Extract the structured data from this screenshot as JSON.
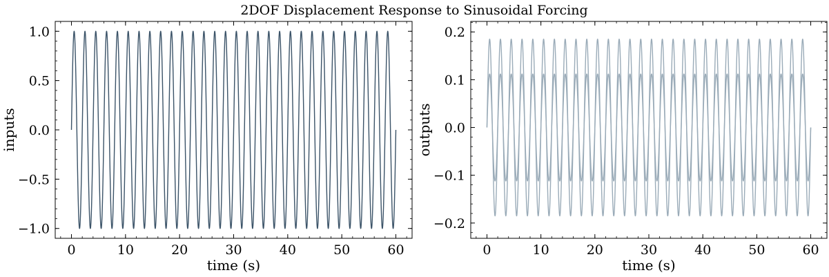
{
  "figure": {
    "title": "2DOF Displacement Response to Sinusoidal Forcing"
  },
  "chart_data": [
    {
      "type": "line",
      "xlabel": "time (s)",
      "ylabel": "inputs",
      "xlim": [
        -3,
        63
      ],
      "ylim": [
        -1.1,
        1.1
      ],
      "xticks": [
        0,
        10,
        20,
        30,
        40,
        50,
        60
      ],
      "xtick_labels": [
        "0",
        "10",
        "20",
        "30",
        "40",
        "50",
        "60"
      ],
      "yticks": [
        -1.0,
        -0.5,
        0.0,
        0.5,
        1.0
      ],
      "ytick_labels": [
        "−1.0",
        "−0.5",
        "0.0",
        "0.5",
        "1.0"
      ],
      "grid": false,
      "series": [
        {
          "color": "#3b5368",
          "x_range": [
            0,
            60
          ],
          "period": 2.0,
          "amplitude": 1.0
        }
      ]
    },
    {
      "type": "line",
      "xlabel": "time (s)",
      "ylabel": "outputs",
      "xlim": [
        -3,
        63
      ],
      "ylim": [
        -0.232,
        0.222
      ],
      "xticks": [
        0,
        10,
        20,
        30,
        40,
        50,
        60
      ],
      "xtick_labels": [
        "0",
        "10",
        "20",
        "30",
        "40",
        "50",
        "60"
      ],
      "yticks": [
        -0.2,
        -0.1,
        0.0,
        0.1,
        0.2
      ],
      "ytick_labels": [
        "−0.2",
        "−0.1",
        "0.0",
        "0.1",
        "0.2"
      ],
      "grid": false,
      "series": [
        {
          "color": "#9aabb8",
          "x_range": [
            0,
            60
          ],
          "period": 2.0,
          "amplitude": 0.185
        },
        {
          "color": "#9aabb8",
          "x_range": [
            0,
            60
          ],
          "period": 2.0,
          "amplitude": 0.112
        }
      ]
    }
  ]
}
